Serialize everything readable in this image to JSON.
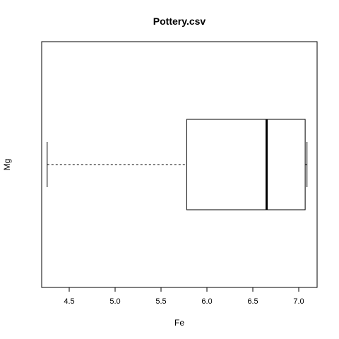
{
  "chart_data": {
    "type": "boxplot",
    "orientation": "horizontal",
    "title": "Pottery.csv",
    "xlabel": "Fe",
    "ylabel": "Mg",
    "xlim": [
      4.2,
      7.2
    ],
    "xticks": [
      "4.5",
      "5.0",
      "5.5",
      "6.0",
      "6.5",
      "7.0"
    ],
    "box": {
      "whisker_low": 4.26,
      "q1": 5.78,
      "median": 6.65,
      "q3": 7.07,
      "whisker_high": 7.09
    },
    "grid": false,
    "legend": null
  }
}
